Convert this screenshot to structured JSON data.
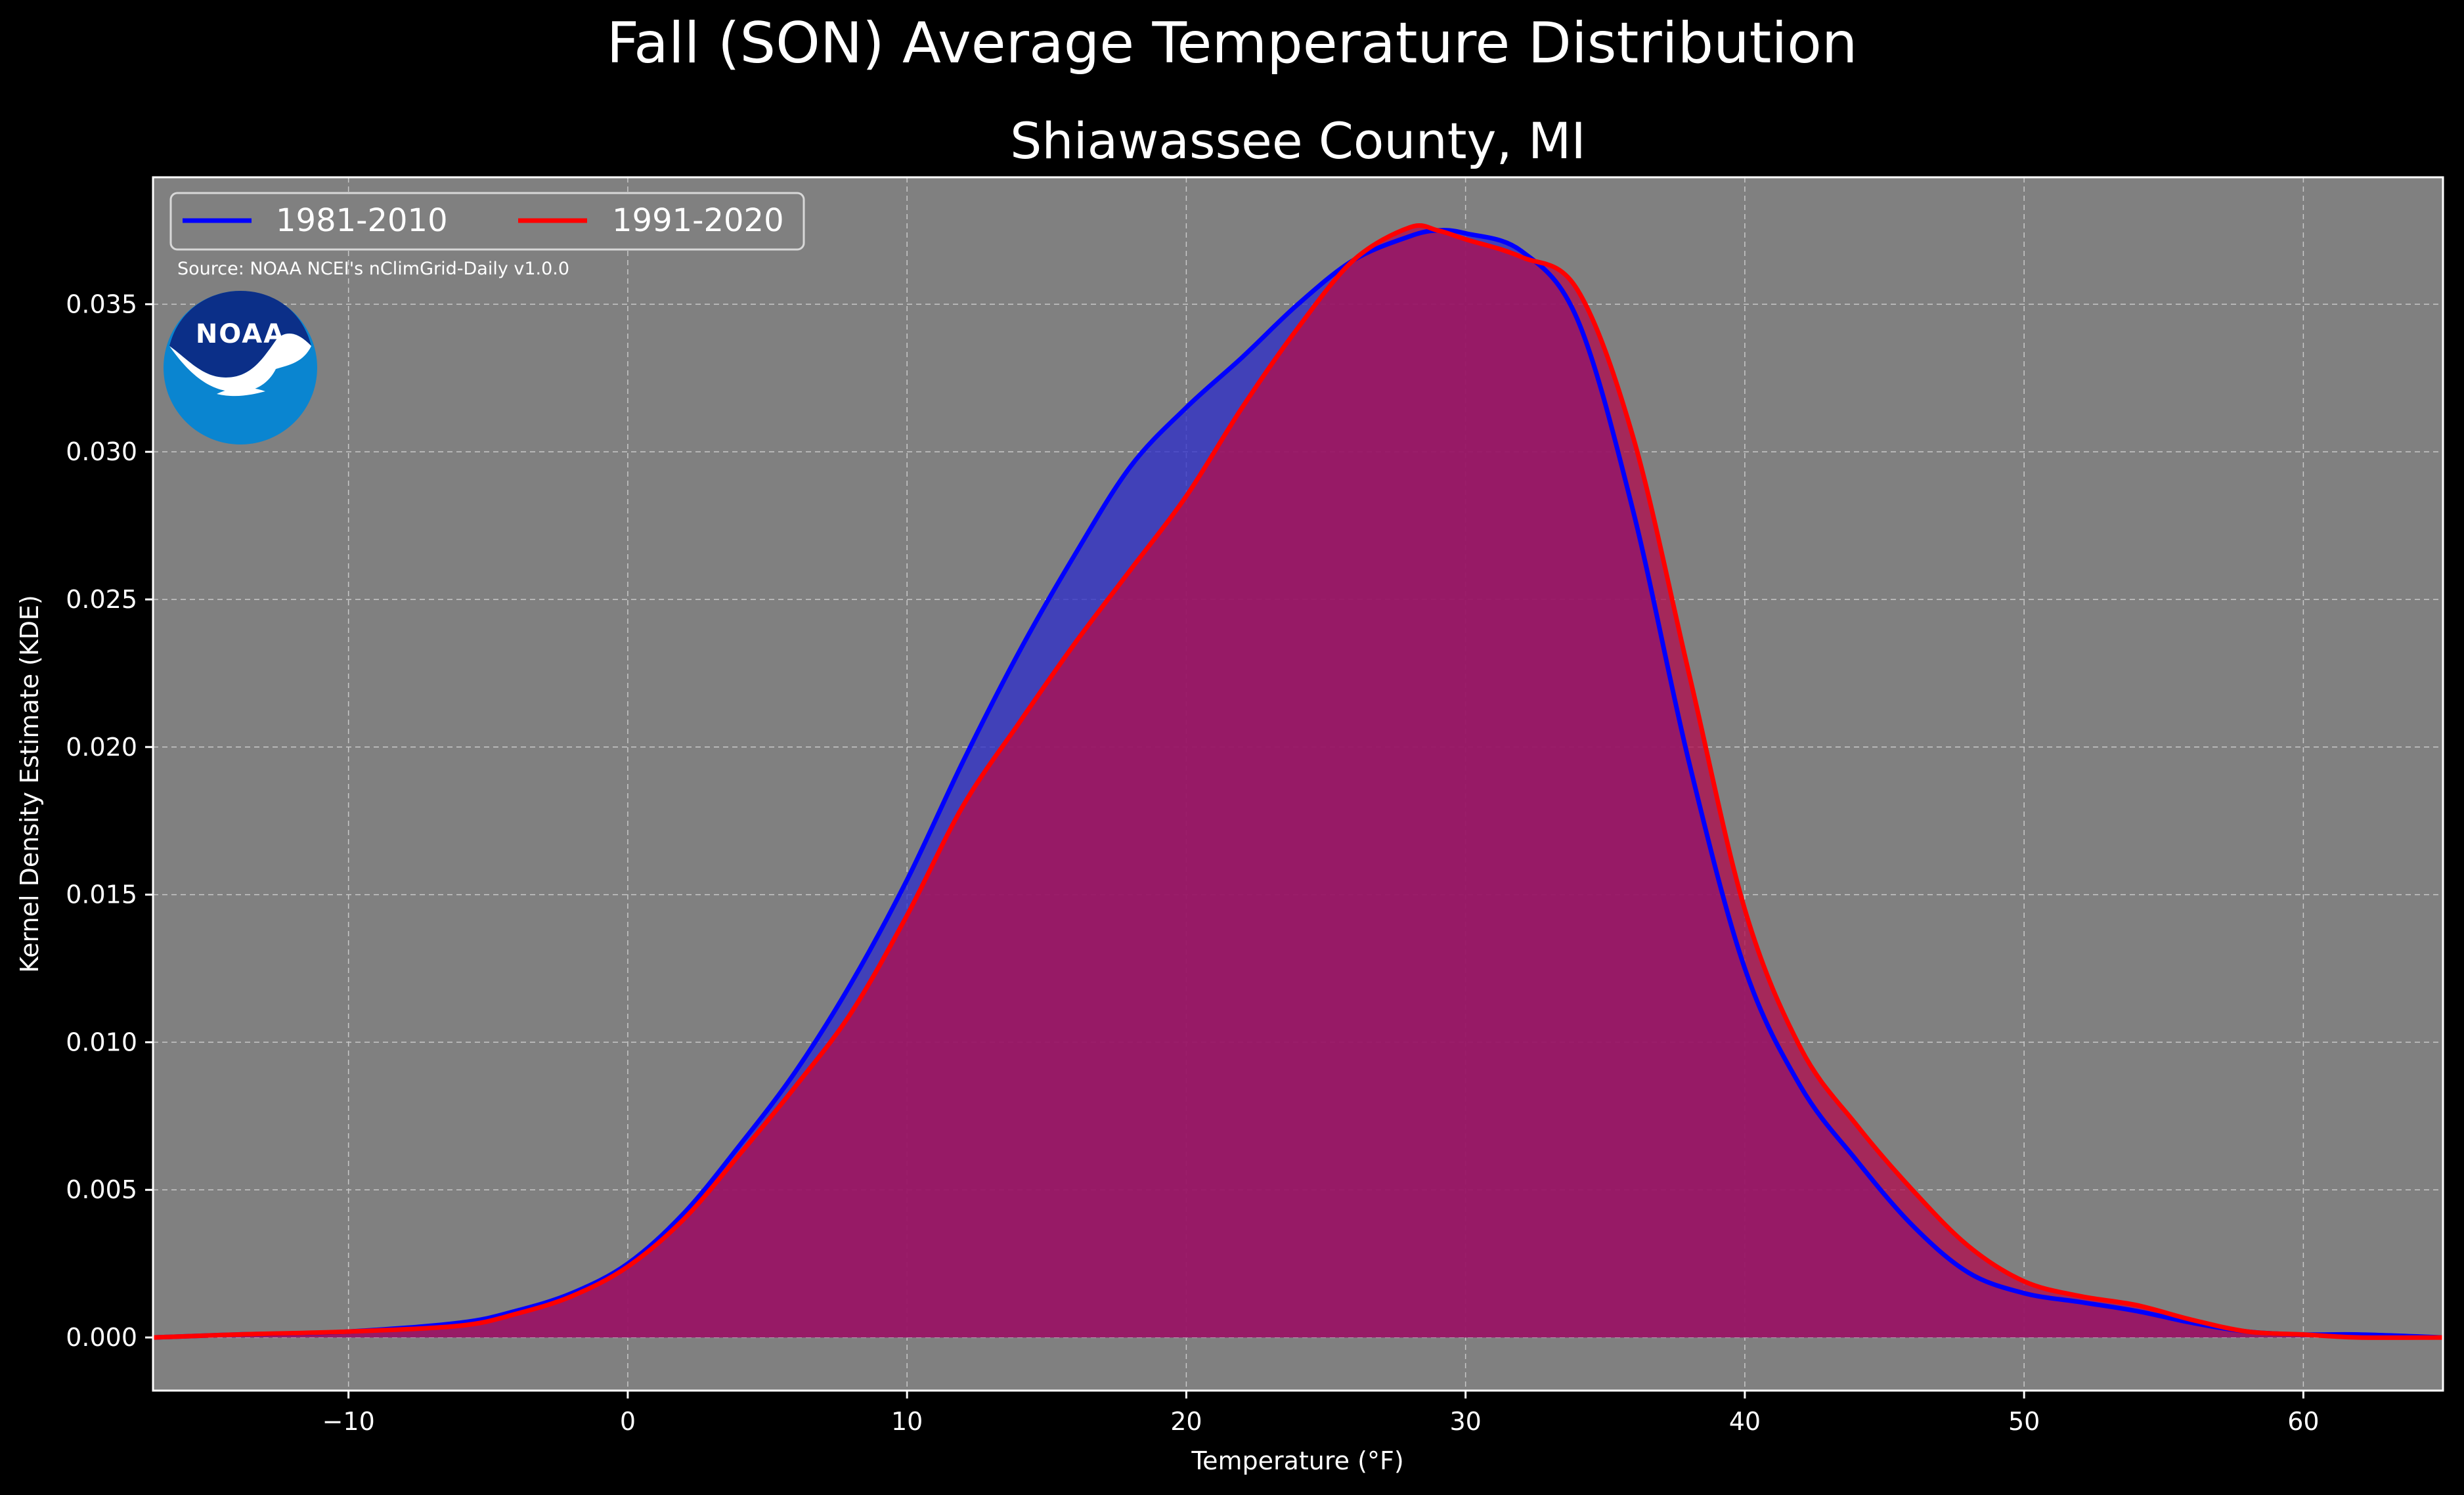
{
  "suptitle": "Fall (SON) Average Temperature Distribution",
  "chart_data": {
    "type": "area",
    "title": "Shiawassee County, MI",
    "xlabel": "Temperature (°F)",
    "ylabel": "Kernel Density Estimate (KDE)",
    "xlim": [
      -17,
      65
    ],
    "ylim": [
      -0.0018,
      0.0393
    ],
    "xticks": [
      -10,
      0,
      10,
      20,
      30,
      40,
      50,
      60
    ],
    "xtick_labels": [
      "−10",
      "0",
      "10",
      "20",
      "30",
      "40",
      "50",
      "60"
    ],
    "yticks": [
      0.0,
      0.005,
      0.01,
      0.015,
      0.02,
      0.025,
      0.03,
      0.035
    ],
    "ytick_labels": [
      "0.000",
      "0.005",
      "0.010",
      "0.015",
      "0.020",
      "0.025",
      "0.030",
      "0.035"
    ],
    "grid": true,
    "legend_position": "top-left",
    "background_color": "#808080",
    "series": [
      {
        "name": "1981-2010",
        "color": "#0000ff",
        "fill_color": "#3030c8",
        "x": [
          -17,
          -14,
          -10,
          -6,
          -4,
          -2,
          0,
          2,
          4,
          6,
          8,
          10,
          12,
          14,
          16,
          18,
          20,
          22,
          24,
          26,
          28,
          29,
          30,
          32,
          34,
          36,
          38,
          40,
          42,
          44,
          46,
          48,
          50,
          52,
          54,
          56,
          58,
          60,
          62,
          65
        ],
        "y": [
          0.0,
          0.0001,
          0.0002,
          0.0005,
          0.0009,
          0.0015,
          0.0025,
          0.0042,
          0.0065,
          0.009,
          0.012,
          0.0155,
          0.0195,
          0.0232,
          0.0265,
          0.0295,
          0.0315,
          0.0332,
          0.035,
          0.0365,
          0.0373,
          0.0375,
          0.0374,
          0.0368,
          0.0345,
          0.028,
          0.0195,
          0.0125,
          0.0085,
          0.006,
          0.0038,
          0.0022,
          0.0015,
          0.0012,
          0.0009,
          0.0005,
          0.0002,
          0.0001,
          0.0001,
          0.0
        ]
      },
      {
        "name": "1991-2020",
        "color": "#ff0000",
        "fill_color": "#b01050",
        "x": [
          -17,
          -14,
          -10,
          -6,
          -4,
          -2,
          0,
          2,
          4,
          6,
          8,
          10,
          12,
          14,
          16,
          18,
          20,
          22,
          24,
          26,
          28,
          29,
          30,
          32,
          34,
          36,
          38,
          40,
          42,
          44,
          46,
          48,
          50,
          52,
          54,
          56,
          58,
          60,
          62,
          65
        ],
        "y": [
          0.0,
          0.0001,
          0.0002,
          0.0004,
          0.0008,
          0.0014,
          0.0024,
          0.004,
          0.0062,
          0.0085,
          0.011,
          0.0143,
          0.018,
          0.0208,
          0.0235,
          0.026,
          0.0285,
          0.0315,
          0.0342,
          0.0365,
          0.0376,
          0.0375,
          0.0372,
          0.0366,
          0.0355,
          0.0305,
          0.0225,
          0.0145,
          0.0098,
          0.0072,
          0.005,
          0.0031,
          0.0019,
          0.0014,
          0.0011,
          0.0006,
          0.0002,
          0.0001,
          0.0,
          0.0
        ]
      }
    ],
    "annotation": "Source: NOAA NCEI's nClimGrid-Daily v1.0.0",
    "logo_text": "NOAA"
  }
}
